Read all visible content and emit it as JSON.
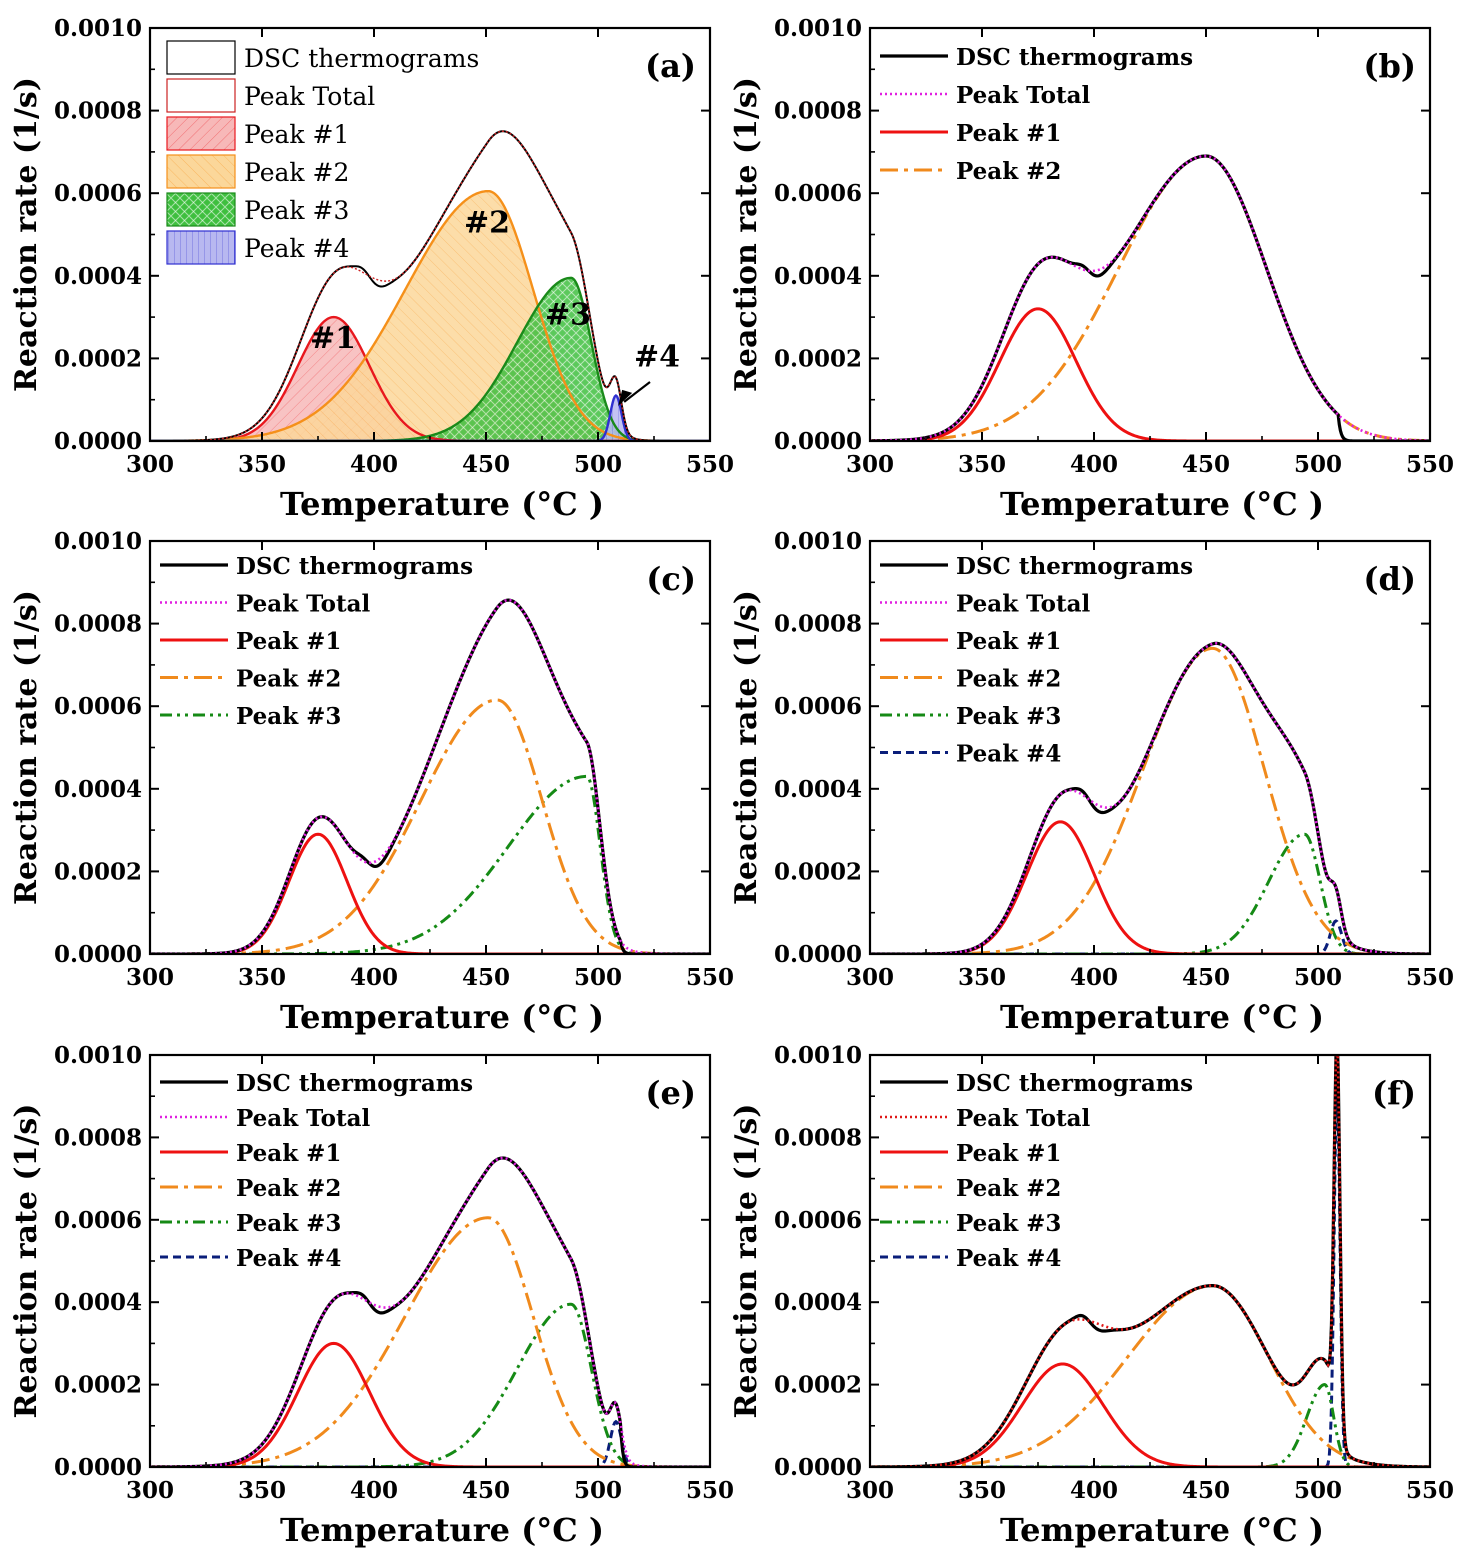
{
  "chart_data": [
    {
      "type": "area",
      "panel_label": "(a)",
      "xlabel": "Temperature (°C )",
      "ylabel": "Reaction rate (1/s)",
      "xlim": [
        300,
        550
      ],
      "ylim": [
        0,
        0.001
      ],
      "xticks": [
        "300",
        "350",
        "400",
        "450",
        "500",
        "550"
      ],
      "yticks": [
        "0.0000",
        "0.0002",
        "0.0004",
        "0.0006",
        "0.0008",
        "0.0010"
      ],
      "legend": [
        "DSC thermograms",
        "Peak Total",
        "Peak #1",
        "Peak #2",
        "Peak #3",
        "Peak #4"
      ],
      "annotations": [
        "#1",
        "#2",
        "#3",
        "#4"
      ],
      "series": [
        {
          "name": "Peak #1",
          "amplitude": 0.0003,
          "center": 382,
          "sigma": 16,
          "color": "#e8181e"
        },
        {
          "name": "Peak #2",
          "amplitude": 0.000605,
          "center": 451,
          "sigma_left": 37,
          "sigma_right": 20,
          "color": "#f5901a"
        },
        {
          "name": "Peak #3",
          "amplitude": 0.000395,
          "center": 488,
          "sigma_left": 24,
          "sigma_right": 9,
          "color": "#1a8a1a"
        },
        {
          "name": "Peak #4",
          "amplitude": 0.00011,
          "center": 508,
          "sigma": 2.5,
          "color": "#3030d0"
        }
      ]
    },
    {
      "type": "line",
      "panel_label": "(b)",
      "xlabel": "Temperature (°C )",
      "ylabel": "Reaction rate (1/s)",
      "xlim": [
        300,
        550
      ],
      "ylim": [
        0,
        0.001
      ],
      "xticks": [
        "300",
        "350",
        "400",
        "450",
        "500",
        "550"
      ],
      "yticks": [
        "0.0000",
        "0.0002",
        "0.0004",
        "0.0006",
        "0.0008",
        "0.0010"
      ],
      "legend": [
        "DSC thermograms",
        "Peak Total",
        "Peak #1",
        "Peak #2"
      ],
      "series": [
        {
          "name": "Peak #1",
          "amplitude": 0.00032,
          "center": 375,
          "sigma": 17
        },
        {
          "name": "Peak #2",
          "amplitude": 0.00069,
          "center": 450,
          "sigma_left": 39,
          "sigma_right": 27
        }
      ]
    },
    {
      "type": "line",
      "panel_label": "(c)",
      "xlabel": "Temperature (°C )",
      "ylabel": "Reaction rate (1/s)",
      "xlim": [
        300,
        550
      ],
      "ylim": [
        0,
        0.001
      ],
      "xticks": [
        "300",
        "350",
        "400",
        "450",
        "500",
        "550"
      ],
      "yticks": [
        "0.0000",
        "0.0002",
        "0.0004",
        "0.0006",
        "0.0008",
        "0.0010"
      ],
      "legend": [
        "DSC thermograms",
        "Peak Total",
        "Peak #1",
        "Peak #2",
        "Peak #3"
      ],
      "series": [
        {
          "name": "Peak #1",
          "amplitude": 0.00029,
          "center": 375,
          "sigma": 13
        },
        {
          "name": "Peak #2",
          "amplitude": 0.000615,
          "center": 455,
          "sigma_left": 34,
          "sigma_right": 20
        },
        {
          "name": "Peak #3",
          "amplitude": 0.00043,
          "center": 495,
          "sigma_left": 35,
          "sigma_right": 6
        }
      ]
    },
    {
      "type": "line",
      "panel_label": "(d)",
      "xlabel": "Temperature (°C )",
      "ylabel": "Reaction rate (1/s)",
      "xlim": [
        300,
        550
      ],
      "ylim": [
        0,
        0.001
      ],
      "xticks": [
        "300",
        "350",
        "400",
        "450",
        "500",
        "550"
      ],
      "yticks": [
        "0.0000",
        "0.0002",
        "0.0004",
        "0.0006",
        "0.0008",
        "0.0010"
      ],
      "legend": [
        "DSC thermograms",
        "Peak Total",
        "Peak #1",
        "Peak #2",
        "Peak #3",
        "Peak #4"
      ],
      "series": [
        {
          "name": "Peak #1",
          "amplitude": 0.00032,
          "center": 385,
          "sigma": 15
        },
        {
          "name": "Peak #2",
          "amplitude": 0.00074,
          "center": 453,
          "sigma_left": 31,
          "sigma_right": 23
        },
        {
          "name": "Peak #3",
          "amplitude": 0.00029,
          "center": 494,
          "sigma_left": 16,
          "sigma_right": 7
        },
        {
          "name": "Peak #4",
          "amplitude": 8e-05,
          "center": 508,
          "sigma": 2.5
        }
      ]
    },
    {
      "type": "line",
      "panel_label": "(e)",
      "xlabel": "Temperature (°C )",
      "ylabel": "Reaction rate (1/s)",
      "xlim": [
        300,
        550
      ],
      "ylim": [
        0,
        0.001
      ],
      "xticks": [
        "300",
        "350",
        "400",
        "450",
        "500",
        "550"
      ],
      "yticks": [
        "0.0000",
        "0.0002",
        "0.0004",
        "0.0006",
        "0.0008",
        "0.0010"
      ],
      "legend": [
        "DSC thermograms",
        "Peak Total",
        "Peak #1",
        "Peak #2",
        "Peak #3",
        "Peak #4"
      ],
      "series": [
        {
          "name": "Peak #1",
          "amplitude": 0.0003,
          "center": 382,
          "sigma": 16
        },
        {
          "name": "Peak #2",
          "amplitude": 0.000605,
          "center": 451,
          "sigma_left": 37,
          "sigma_right": 20
        },
        {
          "name": "Peak #3",
          "amplitude": 0.000395,
          "center": 488,
          "sigma_left": 24,
          "sigma_right": 9
        },
        {
          "name": "Peak #4",
          "amplitude": 0.00011,
          "center": 508,
          "sigma": 2.5
        }
      ]
    },
    {
      "type": "line",
      "panel_label": "(f)",
      "xlabel": "Temperature (°C )",
      "ylabel": "Reaction rate (1/s)",
      "xlim": [
        300,
        550
      ],
      "ylim": [
        0,
        0.001
      ],
      "xticks": [
        "300",
        "350",
        "400",
        "450",
        "500",
        "550"
      ],
      "yticks": [
        "0.0000",
        "0.0002",
        "0.0004",
        "0.0006",
        "0.0008",
        "0.0010"
      ],
      "legend": [
        "DSC thermograms",
        "Peak Total",
        "Peak #1",
        "Peak #2",
        "Peak #3",
        "Peak #4"
      ],
      "series": [
        {
          "name": "Peak #1",
          "amplitude": 0.00025,
          "center": 386,
          "sigma": 18
        },
        {
          "name": "Peak #2",
          "amplitude": 0.00044,
          "center": 453,
          "sigma_left": 38,
          "sigma_right": 25
        },
        {
          "name": "Peak #3",
          "amplitude": 0.0002,
          "center": 503,
          "sigma_left": 8,
          "sigma_right": 4
        },
        {
          "name": "Peak #4",
          "amplitude": 0.00093,
          "center": 508.5,
          "sigma": 1.3
        }
      ]
    }
  ]
}
